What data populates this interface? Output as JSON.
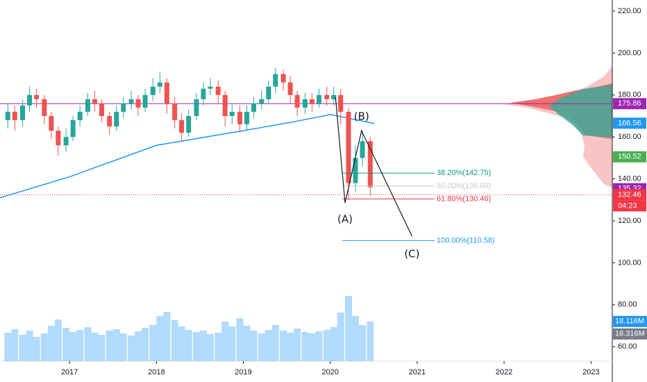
{
  "chart_data": {
    "type": "candlestick",
    "x": [
      2016.29,
      2016.37,
      2016.46,
      2016.54,
      2016.62,
      2016.71,
      2016.79,
      2016.87,
      2016.96,
      2017.04,
      2017.12,
      2017.21,
      2017.29,
      2017.37,
      2017.46,
      2017.54,
      2017.62,
      2017.71,
      2017.79,
      2017.87,
      2017.96,
      2018.04,
      2018.12,
      2018.21,
      2018.29,
      2018.37,
      2018.46,
      2018.54,
      2018.62,
      2018.71,
      2018.79,
      2018.87,
      2018.96,
      2019.04,
      2019.12,
      2019.21,
      2019.29,
      2019.37,
      2019.46,
      2019.54,
      2019.62,
      2019.71,
      2019.79,
      2019.87,
      2019.96,
      2020.04,
      2020.12,
      2020.21,
      2020.29,
      2020.37,
      2020.46
    ],
    "open": [
      168,
      172,
      168,
      175,
      180,
      178,
      170,
      163,
      156,
      160,
      168,
      172,
      178,
      176,
      170,
      165,
      172,
      176,
      178,
      174,
      180,
      184,
      186,
      176,
      168,
      162,
      170,
      178,
      183,
      184,
      180,
      170,
      172,
      166,
      172,
      176,
      178,
      184,
      190,
      186,
      180,
      174,
      178,
      176,
      180,
      178,
      180,
      172,
      138,
      150,
      158
    ],
    "high": [
      176,
      175,
      178,
      184,
      183,
      180,
      172,
      165,
      164,
      170,
      175,
      181,
      182,
      178,
      172,
      175,
      179,
      182,
      180,
      183,
      188,
      191,
      188,
      179,
      171,
      173,
      181,
      186,
      188,
      187,
      182,
      176,
      175,
      175,
      179,
      182,
      187,
      193,
      192,
      189,
      182,
      181,
      181,
      183,
      184,
      184,
      183,
      174,
      156,
      163,
      160
    ],
    "low": [
      164,
      163,
      165,
      172,
      174,
      166,
      159,
      151,
      153,
      158,
      165,
      170,
      172,
      167,
      161,
      163,
      169,
      173,
      170,
      172,
      177,
      181,
      171,
      164,
      158,
      160,
      168,
      175,
      180,
      176,
      165,
      166,
      162,
      163,
      169,
      173,
      176,
      181,
      182,
      176,
      170,
      171,
      172,
      174,
      175,
      175,
      166,
      130,
      134,
      146,
      132
    ],
    "close": [
      172,
      168,
      175,
      180,
      178,
      170,
      163,
      156,
      160,
      168,
      172,
      178,
      176,
      170,
      165,
      172,
      176,
      178,
      174,
      180,
      184,
      186,
      176,
      168,
      162,
      170,
      178,
      183,
      184,
      180,
      170,
      172,
      166,
      172,
      176,
      178,
      184,
      190,
      186,
      180,
      174,
      178,
      176,
      180,
      178,
      180,
      172,
      138,
      150,
      158,
      136
    ],
    "up_color": "#26a69a",
    "down_color": "#ef5350",
    "xlim": [
      2016.2,
      2023.245
    ],
    "xticks": [
      2017,
      2018,
      2019,
      2020,
      2021,
      2022,
      2023
    ],
    "ylim": [
      53.1,
      225.3
    ],
    "yticks": [
      {
        "value": 60,
        "label": "60.00"
      },
      {
        "value": 80,
        "label": "80.00"
      },
      {
        "value": 100,
        "label": "100.00"
      },
      {
        "value": 120,
        "label": "120.00"
      },
      {
        "value": 140,
        "label": "140.00"
      },
      {
        "value": 160,
        "label": "160.00"
      },
      {
        "value": 180,
        "label": "180.00"
      },
      {
        "value": 200,
        "label": "200.00"
      },
      {
        "value": 220,
        "label": "220.00"
      }
    ],
    "moving_average": {
      "color": "#2196f3",
      "x": [
        2016.2,
        2017,
        2018,
        2019,
        2019.55,
        2020,
        2020.51
      ],
      "values": [
        131,
        141,
        156,
        163,
        167,
        170.7,
        166.4
      ]
    },
    "hline": {
      "value": 175.86,
      "color": "#9c27b0"
    },
    "last_price": {
      "value": 132.46,
      "color": "#f23645"
    },
    "price_labels": {
      "values": [
        175.86,
        166.56,
        150.52,
        135.32,
        132.46
      ],
      "colors": [
        "#9c27b0",
        "#2196f3",
        "#4caf50",
        "#9c27b0",
        "#f23645"
      ]
    },
    "countdown": "04:23",
    "fib_x": [
      2020.14,
      2021.2
    ],
    "fib_levels": [
      {
        "label": "38.20%(142.75)",
        "value": 142.75,
        "color": "#089981"
      },
      {
        "label": "50.00%(136.60)",
        "value": 136.6,
        "color": "#c8c8c8"
      },
      {
        "label": "61.80%(130.46)",
        "value": 130.46,
        "color": "#f23645"
      },
      {
        "label": "100.00%(110.58)",
        "value": 110.58,
        "color": "#2196f3"
      }
    ],
    "waves": {
      "x": [
        2020.06,
        2020.17,
        2020.36,
        2020.94
      ],
      "y": [
        179,
        128.6,
        163,
        112.7
      ],
      "labels": [
        null,
        "(A)",
        "(B)",
        "(C)"
      ]
    },
    "volume": {
      "values": [
        16.5,
        17.0,
        16.2,
        16.8,
        15.9,
        16.4,
        17.5,
        18.4,
        17.2,
        16.6,
        16.9,
        17.3,
        16.5,
        16.2,
        16.8,
        17.0,
        16.4,
        16.1,
        16.7,
        17.2,
        17.6,
        18.9,
        19.5,
        18.3,
        17.4,
        16.9,
        16.6,
        16.8,
        16.3,
        16.5,
        18.1,
        17.4,
        18.6,
        17.5,
        16.8,
        16.4,
        16.9,
        17.6,
        16.8,
        16.5,
        17.1,
        16.6,
        16.4,
        16.7,
        16.9,
        17.3,
        19.4,
        21.8,
        18.9,
        17.6,
        18.116
      ],
      "color": "#90caf9",
      "ylim": [
        12.4,
        25.4
      ],
      "labels": [
        {
          "value": 18.116,
          "label": "18.116M"
        },
        {
          "value": 16.316,
          "label": "16.316M"
        }
      ],
      "label_colors": [
        "#2196f3",
        "#787b86"
      ]
    }
  }
}
